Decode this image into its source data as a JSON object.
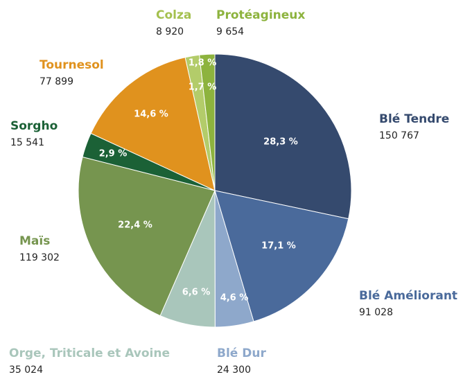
{
  "chart_data": {
    "type": "pie",
    "categories": [
      "Blé Tendre",
      "Blé Améliorant",
      "Blé Dur",
      "Orge, Triticale et Avoine",
      "Maïs",
      "Sorgho",
      "Tournesol",
      "Colza",
      "Protéagineux"
    ],
    "values": [
      150767,
      91028,
      24300,
      35024,
      119302,
      15541,
      77899,
      8920,
      9654
    ],
    "value_labels": [
      "150 767",
      "91 028",
      "24 300",
      "35 024",
      "119 302",
      "15 541",
      "77 899",
      "8 920",
      "9 654"
    ],
    "percents": [
      28.3,
      17.1,
      4.6,
      6.6,
      22.4,
      2.9,
      14.6,
      1.7,
      1.8
    ],
    "percent_labels": [
      "28,3 %",
      "17,1 %",
      "4,6 %",
      "6,6 %",
      "22,4 %",
      "2,9 %",
      "14,6 %",
      "1,7 %",
      "1,8 %"
    ],
    "colors": [
      "#354a6e",
      "#4a6a9b",
      "#8ea8cb",
      "#a9c6bb",
      "#76954f",
      "#1b6136",
      "#e0921e",
      "#b3cc6a",
      "#8db33e"
    ]
  }
}
